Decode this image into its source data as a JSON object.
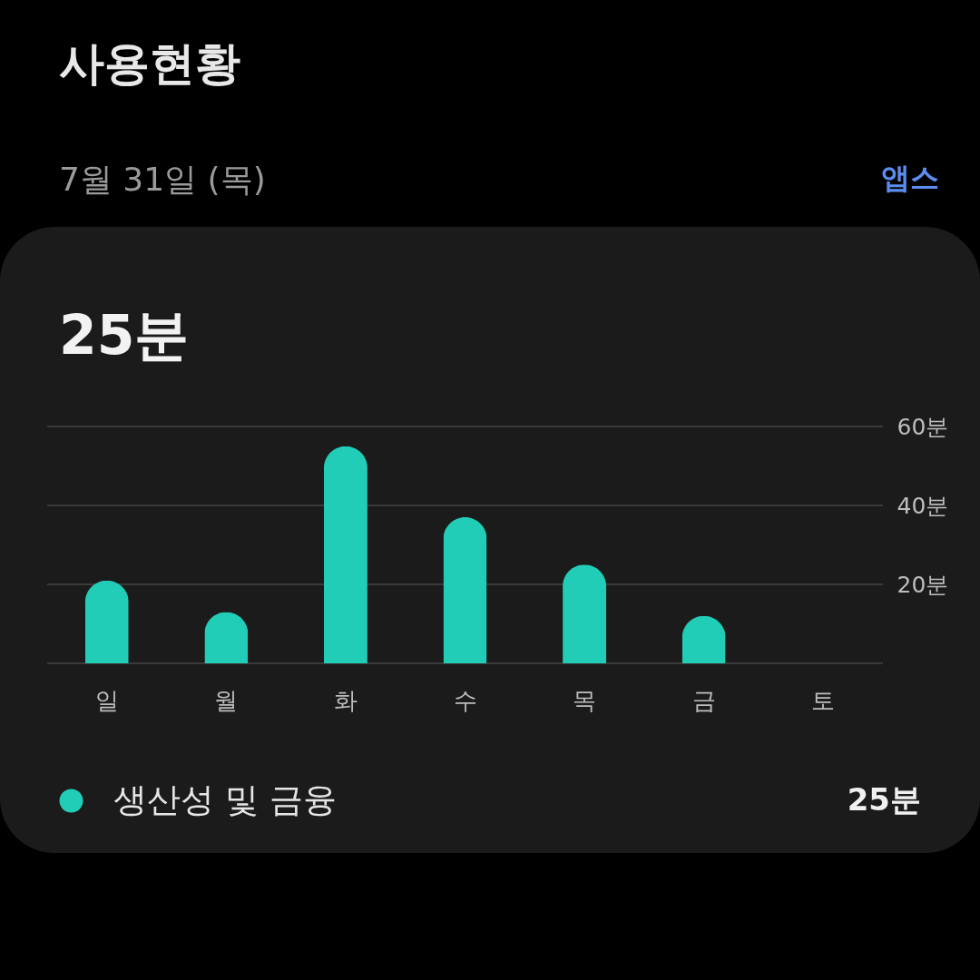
{
  "chart_data": {
    "type": "bar",
    "title": "사용현황",
    "subtitle": "7월 31일 (목)",
    "categories": [
      "일",
      "월",
      "화",
      "수",
      "목",
      "금",
      "토"
    ],
    "series": [
      {
        "name": "생산성 및 금융",
        "color": "#22cdb7",
        "values": [
          21,
          13,
          55,
          37,
          25,
          12,
          null
        ]
      }
    ],
    "ylim": [
      0,
      60
    ],
    "yticks": [
      {
        "value": 0,
        "label": null
      },
      {
        "value": 20,
        "label": "20분"
      },
      {
        "value": 40,
        "label": "40분"
      },
      {
        "value": 60,
        "label": "60분"
      }
    ],
    "grid": "y",
    "legend": "bottom",
    "annotations": [
      "앱스",
      "25분",
      "25분"
    ]
  }
}
